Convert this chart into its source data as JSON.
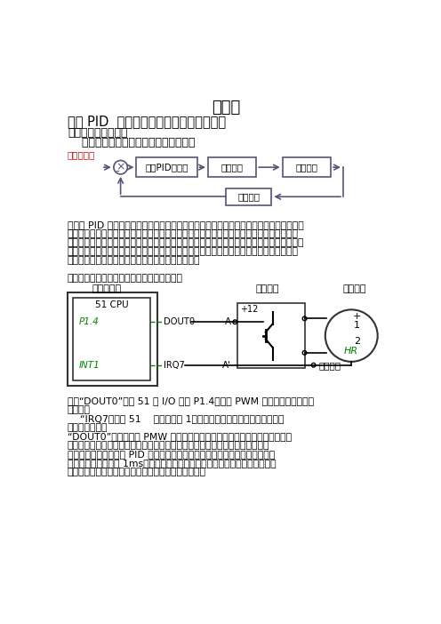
{
  "title": "实验六",
  "subtitle": "数字 PID  直流电机闭环调速控制系统设计",
  "section1": "一、实验原理及内容",
  "section1_sub": "    直流电机调速实验的系统方框图如下：",
  "block_diagram_labels": [
    "数字PID控制器",
    "驱动电路",
    "直流电机"
  ],
  "feedback_label": "测速电路",
  "input_label": "数字给定值",
  "para1_line1": "电机的 PID 控制原理：单片机给出脉冲调制信号，脉冲调制信号的脉宽决定电机的转速，",
  "para1_line2": "即可通过调节脉冲的占空比来调节电机的转速，脉冲信号驱动电路放大后控制直流电机的转",
  "para1_line3": "动，然后测速电路几乎同步测出电机转速并输出，该输出信号与给定值（给定的转速）比较，",
  "para1_line4": "如果两者不相同，经单片机里面的算法比对后，单片机调节脉冲宽度，继续输出给驱动电路",
  "para1_line5": "控制电机，如此循环，直到电机转速与给定值相同。",
  "para1_line6": "根据上述系统方框图，硬件线路图设计如下：",
  "circuit_title1": "控制计算机",
  "circuit_title2": "驱动单元",
  "circuit_title3": "直流电机",
  "cpu_label": "51 CPU",
  "p14_label": "P1.4",
  "int1_label": "INT1",
  "dout0_label": "DOUT0",
  "irq7_label": "IRQ7",
  "a_label": "A",
  "ap_label": "A'",
  "plus12_label": "+12",
  "plus_label": "+",
  "num1_label": "1",
  "num2_label": "2",
  "hr_label": "HR",
  "hall_label": "霍尔输出",
  "cap_line1": "图中“DOUT0”表示 51 的 I/O 管脚 P1.4，输出 PWM 脉冲经驱动后控制直",
  "cap_line2": "流电机。",
  "cap_line3": "    “IRQ7＂表示 51    的外部中断 1，用作测速中断。实验中，用系统的",
  "cap_line4": "数字量输出端口",
  "cap_line5": "“DOUT0”来模拟产生 PMW 脉宽调制信号，构成系统的控制量，经驱动电路",
  "cap_line6": "驱动后控制电机运转，霍尔测速元件输出的脉冲信号记录电机转速构成反馈量，",
  "cap_line7": "在参数给定情况下，经 PID 运算，电机可在控制量作用下，按给定转速们环运",
  "cap_line8": "转；系统定时器定时 1ms，作为系统采样基准时钟；测速中断用于测量电机转",
  "cap_line9": "速。直流电机闭环调速控制系统实验的参考程序如下："
}
